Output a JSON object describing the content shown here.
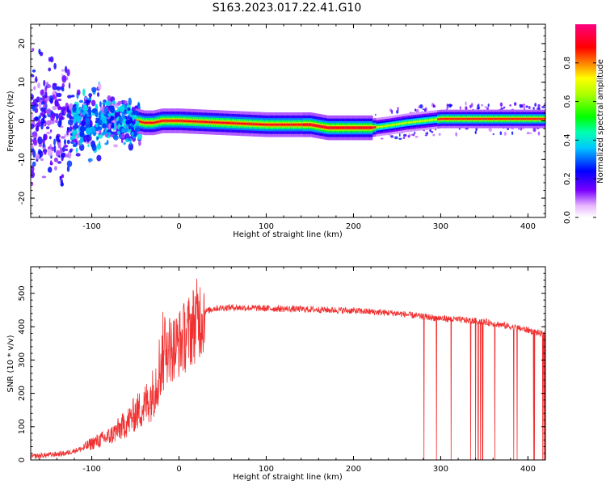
{
  "title": "S163.2023.017.22.41.G10",
  "chart_data": [
    {
      "type": "heatmap",
      "xlabel": "Height of straight line (km)",
      "ylabel": "Frequency (Hz)",
      "xlim": [
        -170,
        420
      ],
      "ylim": [
        -25,
        25
      ],
      "xticks": [
        -100,
        0,
        100,
        200,
        300,
        400
      ],
      "xtick_labels": [
        "-100",
        "0",
        "100",
        "200",
        "300",
        "400"
      ],
      "yticks": [
        -20,
        -10,
        0,
        10,
        20
      ],
      "ytick_labels": [
        "-20",
        "-10",
        "0",
        "10",
        "20"
      ],
      "colorbar": {
        "label": "Normalized spectral amplitude",
        "range": [
          0,
          1
        ],
        "ticks": [
          0,
          0.2,
          0.4,
          0.6,
          0.8
        ],
        "tick_labels": [
          "0.0",
          "0.2",
          "0.4",
          "0.6",
          "0.8"
        ],
        "colormap": "gist_rainbow_r (white-magenta-blue-cyan-green-yellow-red-pink)"
      },
      "ridge": {
        "description": "Doppler peak frequency vs height",
        "x": [
          -170,
          -130,
          -100,
          -70,
          -50,
          -40,
          -30,
          -20,
          0,
          50,
          100,
          150,
          170,
          200,
          220,
          240,
          260,
          280,
          300,
          350,
          420
        ],
        "freq": [
          2,
          1,
          1,
          0.5,
          0,
          -0.5,
          -0.5,
          0,
          0,
          -0.5,
          -1,
          -1,
          -1.8,
          -1.8,
          -1.8,
          -1.2,
          -0.5,
          0,
          0.5,
          0.5,
          0.5
        ]
      },
      "grid": false
    },
    {
      "type": "line",
      "xlabel": "Height of straight line (km)",
      "ylabel": "SNR (10 * v/v)",
      "xlim": [
        -170,
        420
      ],
      "ylim": [
        0,
        580
      ],
      "xticks": [
        -100,
        0,
        100,
        200,
        300,
        400
      ],
      "xtick_labels": [
        "-100",
        "0",
        "100",
        "200",
        "300",
        "400"
      ],
      "yticks": [
        0,
        100,
        200,
        300,
        400,
        500
      ],
      "ytick_labels": [
        "0",
        "100",
        "200",
        "300",
        "400",
        "500"
      ],
      "color": "#f03030",
      "series": [
        {
          "x": [
            -170,
            -150,
            -130,
            -110,
            -100,
            -80,
            -60,
            -50,
            -40,
            -30,
            -20,
            -15,
            -10,
            0,
            10,
            20,
            30,
            40,
            60,
            100,
            150,
            200,
            250,
            280,
            300,
            350,
            400,
            420
          ],
          "y": [
            10,
            15,
            20,
            35,
            50,
            70,
            110,
            140,
            160,
            200,
            300,
            380,
            330,
            350,
            380,
            420,
            445,
            455,
            458,
            455,
            452,
            448,
            440,
            430,
            425,
            415,
            390,
            375
          ]
        }
      ],
      "dropouts_to_zero_range": [
        278,
        420
      ],
      "grid": false
    }
  ]
}
